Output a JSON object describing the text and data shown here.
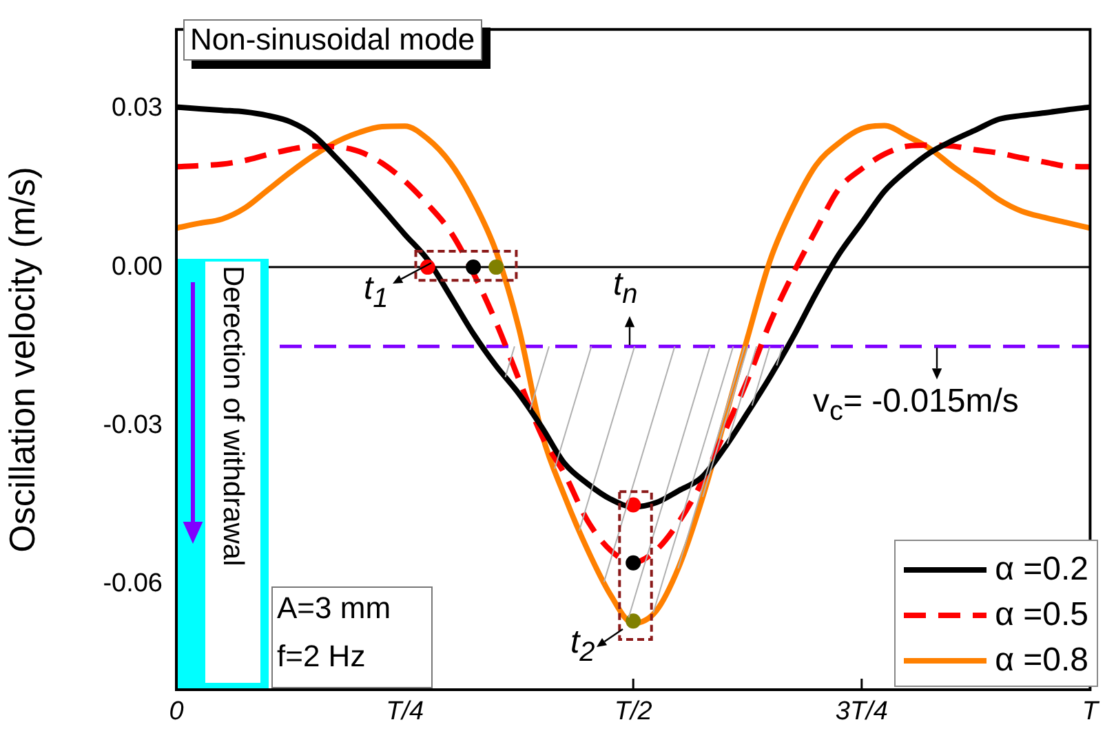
{
  "chart_data": {
    "type": "line",
    "ylabel": "Oscillation velocity (m/s)",
    "categories": [
      "0",
      null,
      null,
      null,
      null,
      null,
      null,
      null,
      null,
      null,
      "T/4",
      null,
      null,
      null,
      null,
      null,
      null,
      null,
      null,
      null,
      "T/2",
      null,
      null,
      null,
      null,
      null,
      null,
      null,
      null,
      null,
      "3T/4",
      null,
      null,
      null,
      null,
      null,
      null,
      null,
      null,
      null,
      "T"
    ],
    "ylim": [
      -0.08,
      0.045
    ],
    "yticks": [
      {
        "value": -0.06,
        "label": "-0.06"
      },
      {
        "value": -0.03,
        "label": "-0.03"
      },
      {
        "value": 0,
        "label": "0.00"
      },
      {
        "value": 0.03,
        "label": "0.03"
      }
    ],
    "grid": false,
    "legend": "bottom right",
    "series": [
      {
        "name": "α =0.2",
        "color": "#000000",
        "line_style": "solid",
        "values": [
          0.0303,
          0.03,
          0.0297,
          0.0294,
          0.0287,
          0.0275,
          0.025,
          0.0207,
          0.0161,
          0.0112,
          0.0062,
          0.0014,
          -0.0055,
          -0.0126,
          -0.0187,
          -0.024,
          -0.0303,
          -0.0372,
          -0.041,
          -0.0439,
          -0.0454,
          -0.0446,
          -0.0423,
          -0.0398,
          -0.0342,
          -0.0276,
          -0.0207,
          -0.0132,
          -0.005,
          0.0024,
          0.0084,
          0.0144,
          0.0184,
          0.0217,
          0.024,
          0.026,
          0.028,
          0.0287,
          0.0292,
          0.0298,
          0.0303
        ]
      },
      {
        "name": "α =0.5",
        "color": "#ff0000",
        "line_style": "dashed",
        "values": [
          0.019,
          0.0192,
          0.0195,
          0.0202,
          0.0213,
          0.0223,
          0.0229,
          0.0228,
          0.0219,
          0.0197,
          0.0163,
          0.0119,
          0.0067,
          -0.0011,
          -0.0105,
          -0.0213,
          -0.0319,
          -0.0392,
          -0.048,
          -0.0536,
          -0.0559,
          -0.0536,
          -0.0482,
          -0.0407,
          -0.0312,
          -0.0214,
          -0.0104,
          -0.0012,
          0.007,
          0.0148,
          0.0186,
          0.0214,
          0.0229,
          0.0231,
          0.0229,
          0.0222,
          0.0216,
          0.0207,
          0.0199,
          0.0191,
          0.019
        ]
      },
      {
        "name": "α =0.8",
        "color": "#ff8000",
        "line_style": "solid",
        "values": [
          0.0074,
          0.0083,
          0.0091,
          0.0112,
          0.0146,
          0.018,
          0.0211,
          0.0237,
          0.0255,
          0.0266,
          0.0267,
          0.0243,
          0.0197,
          0.0125,
          0.0029,
          -0.0117,
          -0.0315,
          -0.0434,
          -0.0535,
          -0.062,
          -0.0674,
          -0.0651,
          -0.0567,
          -0.0441,
          -0.029,
          -0.0134,
          0.0014,
          0.0115,
          0.0193,
          0.0235,
          0.0262,
          0.0268,
          0.0248,
          0.0224,
          0.019,
          0.016,
          0.0128,
          0.0106,
          0.0094,
          0.0084,
          0.0074
        ]
      },
      {
        "type": "scatter",
        "marker": "circle",
        "color": "#ff0000",
        "values": [
          null,
          null,
          null,
          null,
          null,
          null,
          null,
          null,
          null,
          null,
          null,
          0,
          null,
          null,
          null,
          null,
          null,
          null,
          null,
          null,
          -0.045,
          null,
          null,
          null,
          null,
          null,
          null,
          null,
          null,
          null,
          null,
          null,
          null,
          null,
          null,
          null,
          null,
          null,
          null,
          null,
          null
        ]
      },
      {
        "type": "scatter",
        "marker": "circle",
        "color": "#000000",
        "values": [
          null,
          null,
          null,
          null,
          null,
          null,
          null,
          null,
          null,
          null,
          null,
          null,
          null,
          0,
          null,
          null,
          null,
          null,
          null,
          null,
          -0.056,
          null,
          null,
          null,
          null,
          null,
          null,
          null,
          null,
          null,
          null,
          null,
          null,
          null,
          null,
          null,
          null,
          null,
          null,
          null,
          null
        ]
      },
      {
        "type": "scatter",
        "marker": "circle",
        "color": "#808000",
        "values": [
          null,
          null,
          null,
          null,
          null,
          null,
          null,
          null,
          null,
          null,
          null,
          null,
          null,
          null,
          0,
          null,
          null,
          null,
          null,
          null,
          -0.067,
          null,
          null,
          null,
          null,
          null,
          null,
          null,
          null,
          null,
          null,
          null,
          null,
          null,
          null,
          null,
          null,
          null,
          null,
          null,
          null
        ]
      }
    ],
    "ref_lines": [
      {
        "axis": "y",
        "value": 0,
        "color": "#000000",
        "line_style": "solid"
      },
      {
        "axis": "y",
        "value": -0.015,
        "label": "v$_{c}$= -0.015m/s",
        "color": "#8000ff",
        "line_style": "dashed"
      }
    ],
    "annotations": [
      "Non-sinusoidal mode",
      "t$_{1}$",
      "t$_{2}$",
      "t$_{n}$",
      "Derection of withdrawal",
      "A=3 mm",
      "f=2 Hz"
    ]
  }
}
